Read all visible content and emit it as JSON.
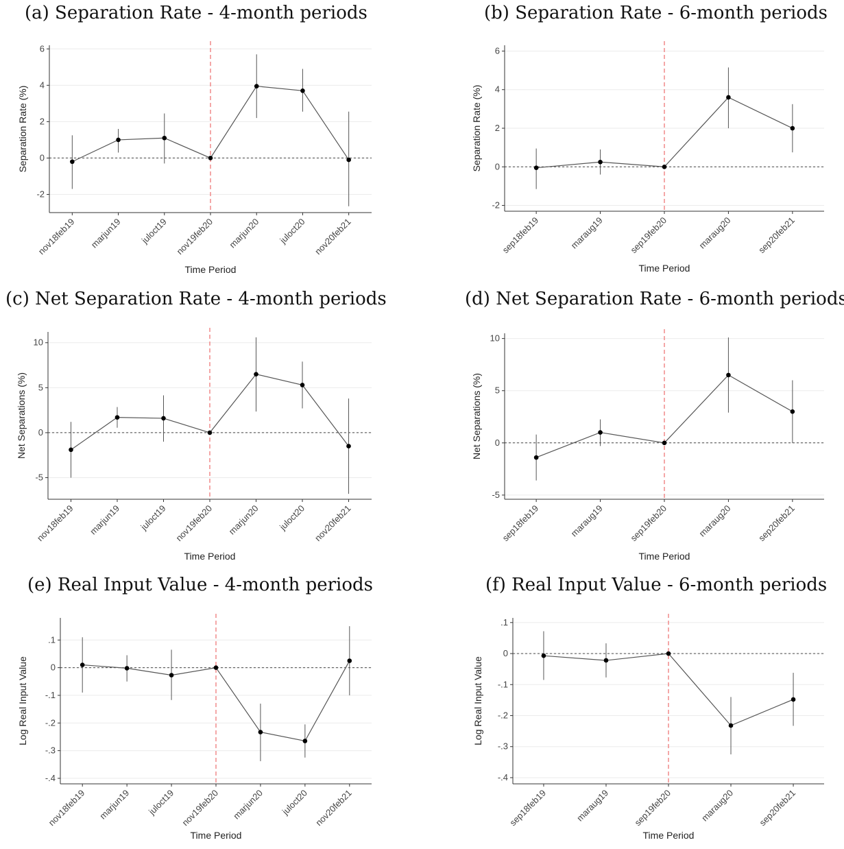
{
  "chart_data": [
    {
      "type": "line",
      "caption": "(a) Separation Rate - 4-month periods",
      "xlabel": "Time Period",
      "ylabel": "Separation Rate (%)",
      "categories": [
        "nov18feb19",
        "marjun19",
        "juloct19",
        "nov19feb20",
        "marjun20",
        "juloct20",
        "nov20feb21"
      ],
      "values": [
        -0.2,
        1.0,
        1.1,
        0.0,
        3.95,
        3.7,
        -0.1
      ],
      "ci_low": [
        -1.7,
        0.3,
        -0.3,
        0.0,
        2.2,
        2.55,
        -2.65
      ],
      "ci_high": [
        1.25,
        1.6,
        2.45,
        0.0,
        5.7,
        4.9,
        2.55
      ],
      "ylim": [
        -3,
        6.2
      ],
      "yticks": [
        -2,
        0,
        2,
        4,
        6
      ],
      "ytick_labels": [
        "-2",
        "0",
        "2",
        "4",
        "6"
      ],
      "event_category": "nov19feb20",
      "zero_line": true,
      "grid": true
    },
    {
      "type": "line",
      "caption": "(b) Separation Rate - 6-month periods",
      "xlabel": "Time Period",
      "ylabel": "Separation Rate (%)",
      "categories": [
        "sep18feb19",
        "maraug19",
        "sep19feb20",
        "maraug20",
        "sep20feb21"
      ],
      "values": [
        -0.05,
        0.25,
        0.0,
        3.6,
        2.0
      ],
      "ci_low": [
        -1.15,
        -0.4,
        0.0,
        2.0,
        0.75
      ],
      "ci_high": [
        0.95,
        0.9,
        0.0,
        5.15,
        3.25
      ],
      "ylim": [
        -2.3,
        6.3
      ],
      "yticks": [
        -2,
        0,
        2,
        4,
        6
      ],
      "ytick_labels": [
        "-2",
        "0",
        "2",
        "4",
        "6"
      ],
      "event_category": "sep19feb20",
      "zero_line": true,
      "grid": true
    },
    {
      "type": "line",
      "caption": "(c) Net Separation Rate - 4-month periods",
      "xlabel": "Time Period",
      "ylabel": "Net Separations (%)",
      "categories": [
        "nov18feb19",
        "marjun19",
        "juloct19",
        "nov19feb20",
        "marjun20",
        "juloct20",
        "nov20feb21"
      ],
      "values": [
        -1.9,
        1.7,
        1.6,
        0.0,
        6.5,
        5.3,
        -1.5
      ],
      "ci_low": [
        -5.0,
        0.55,
        -1.0,
        0.0,
        2.35,
        2.7,
        -6.8
      ],
      "ci_high": [
        1.2,
        2.85,
        4.15,
        0.0,
        10.6,
        7.9,
        3.8
      ],
      "ylim": [
        -7.4,
        11.2
      ],
      "yticks": [
        -5,
        0,
        5,
        10
      ],
      "ytick_labels": [
        "-5",
        "0",
        "5",
        "10"
      ],
      "event_category": "nov19feb20",
      "zero_line": true,
      "grid": true
    },
    {
      "type": "line",
      "caption": "(d) Net Separation Rate - 6-month periods",
      "xlabel": "Time Period",
      "ylabel": "Net Separations (%)",
      "categories": [
        "sep18feb19",
        "maraug19",
        "sep19feb20",
        "maraug20",
        "sep20feb21"
      ],
      "values": [
        -1.4,
        1.0,
        0.0,
        6.5,
        3.0
      ],
      "ci_low": [
        -3.6,
        -0.3,
        0.0,
        2.9,
        0.0
      ],
      "ci_high": [
        0.8,
        2.25,
        0.0,
        10.1,
        6.0
      ],
      "ylim": [
        -5.4,
        10.5
      ],
      "yticks": [
        -5,
        0,
        5,
        10
      ],
      "ytick_labels": [
        "-5",
        "0",
        "5",
        "10"
      ],
      "event_category": "sep19feb20",
      "zero_line": true,
      "grid": true
    },
    {
      "type": "line",
      "caption": "(e) Real Input Value - 4-month periods",
      "xlabel": "Time Period",
      "ylabel": "Log Real Input Value",
      "categories": [
        "nov18feb19",
        "marjun19",
        "juloct19",
        "nov19feb20",
        "marjun20",
        "juloct20",
        "nov20feb21"
      ],
      "values": [
        0.01,
        -0.002,
        -0.027,
        0.0,
        -0.233,
        -0.265,
        0.025
      ],
      "ci_low": [
        -0.09,
        -0.05,
        -0.117,
        0.0,
        -0.338,
        -0.325,
        -0.1
      ],
      "ci_high": [
        0.11,
        0.045,
        0.065,
        0.0,
        -0.13,
        -0.205,
        0.15
      ],
      "ylim": [
        -0.42,
        0.18
      ],
      "yticks": [
        -0.4,
        -0.3,
        -0.2,
        -0.1,
        0,
        0.1
      ],
      "ytick_labels": [
        "-.4",
        "-.3",
        "-.2",
        "-.1",
        "0",
        ".1"
      ],
      "event_category": "nov19feb20",
      "zero_line": true,
      "grid": true
    },
    {
      "type": "line",
      "caption": "(f) Real Input Value - 6-month periods",
      "xlabel": "Time Period",
      "ylabel": "Log Real Input Value",
      "categories": [
        "sep18feb19",
        "maraug19",
        "sep19feb20",
        "maraug20",
        "sep20feb21"
      ],
      "values": [
        -0.007,
        -0.022,
        0.0,
        -0.232,
        -0.148
      ],
      "ci_low": [
        -0.085,
        -0.077,
        0.0,
        -0.325,
        -0.233
      ],
      "ci_high": [
        0.072,
        0.033,
        0.0,
        -0.14,
        -0.062
      ],
      "ylim": [
        -0.42,
        0.115
      ],
      "yticks": [
        -0.4,
        -0.3,
        -0.2,
        -0.1,
        0,
        0.1
      ],
      "ytick_labels": [
        "-.4",
        "-.3",
        "-.2",
        "-.1",
        "0",
        ".1"
      ],
      "event_category": "sep19feb20",
      "zero_line": true,
      "grid": true
    }
  ]
}
